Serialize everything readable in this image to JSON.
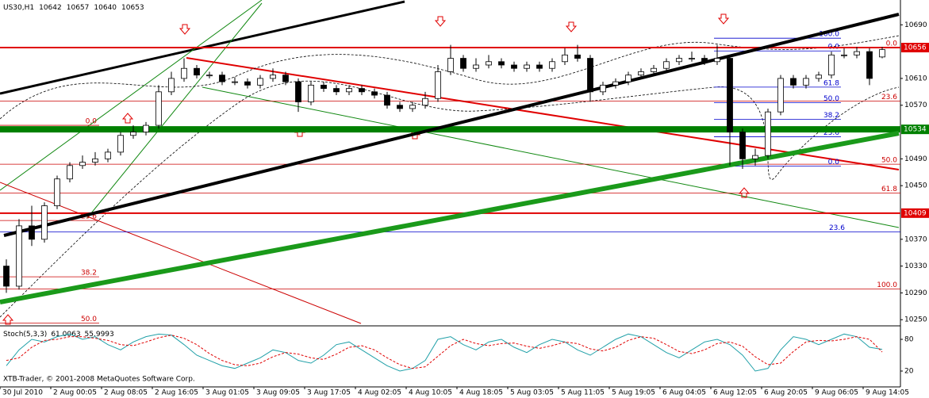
{
  "chart_data": {
    "type": "candlestick",
    "symbol": "US30,H1",
    "open": [
      10330,
      10300,
      10390,
      10370,
      10420,
      10460,
      10480,
      10485,
      10490,
      10500,
      10525,
      10530,
      10540,
      10590,
      10610,
      10625,
      10615,
      10615,
      10605,
      10605,
      10600,
      10610,
      10615,
      10605,
      10575,
      10600,
      10595,
      10590,
      10595,
      10590,
      10585,
      10570,
      10565,
      10570,
      10580,
      10620,
      10640,
      10625,
      10630,
      10635,
      10630,
      10625,
      10630,
      10625,
      10635,
      10645,
      10640,
      10590,
      10600,
      10605,
      10615,
      10620,
      10625,
      10635,
      10640,
      10640,
      10635,
      10640,
      10530,
      10490,
      10495,
      10560,
      10610,
      10600,
      10610,
      10615,
      10645,
      10645,
      10650,
      10642
    ],
    "high": [
      10340,
      10400,
      10420,
      10425,
      10465,
      10485,
      10495,
      10500,
      10505,
      10530,
      10540,
      10545,
      10600,
      10620,
      10640,
      10630,
      10620,
      10620,
      10612,
      10610,
      10615,
      10625,
      10620,
      10610,
      10605,
      10605,
      10600,
      10600,
      10600,
      10595,
      10590,
      10575,
      10575,
      10590,
      10630,
      10660,
      10645,
      10640,
      10645,
      10640,
      10635,
      10635,
      10635,
      10640,
      10655,
      10660,
      10645,
      10605,
      10610,
      10620,
      10625,
      10630,
      10640,
      10645,
      10650,
      10645,
      10660,
      10645,
      10535,
      10505,
      10565,
      10615,
      10615,
      10615,
      10620,
      10650,
      10655,
      10657,
      10655,
      10657
    ],
    "low": [
      10290,
      10295,
      10360,
      10365,
      10415,
      10455,
      10475,
      10480,
      10485,
      10495,
      10520,
      10525,
      10535,
      10585,
      10605,
      10610,
      10610,
      10600,
      10600,
      10595,
      10595,
      10605,
      10600,
      10560,
      10570,
      10590,
      10585,
      10585,
      10585,
      10580,
      10565,
      10560,
      10560,
      10565,
      10575,
      10615,
      10620,
      10620,
      10625,
      10625,
      10620,
      10620,
      10620,
      10620,
      10630,
      10635,
      10575,
      10585,
      10595,
      10600,
      10610,
      10615,
      10620,
      10630,
      10635,
      10630,
      10630,
      10480,
      10475,
      10480,
      10490,
      10555,
      10595,
      10595,
      10605,
      10610,
      10640,
      10640,
      10600,
      10640
    ],
    "close": [
      10300,
      10390,
      10370,
      10420,
      10460,
      10480,
      10485,
      10490,
      10500,
      10525,
      10530,
      10540,
      10590,
      10610,
      10625,
      10615,
      10615,
      10605,
      10605,
      10600,
      10610,
      10615,
      10605,
      10575,
      10600,
      10595,
      10590,
      10595,
      10590,
      10585,
      10570,
      10565,
      10570,
      10580,
      10620,
      10640,
      10625,
      10630,
      10635,
      10630,
      10625,
      10630,
      10625,
      10635,
      10645,
      10640,
      10590,
      10600,
      10605,
      10615,
      10620,
      10625,
      10635,
      10640,
      10640,
      10635,
      10640,
      10530,
      10490,
      10495,
      10560,
      10610,
      10600,
      10610,
      10615,
      10645,
      10645,
      10650,
      10610,
      10653
    ],
    "ylim": [
      10242,
      10727
    ],
    "yticks": [
      10690,
      10610,
      10570,
      10490,
      10450,
      10370,
      10330,
      10290,
      10250
    ],
    "levels": [
      {
        "value": 10656,
        "color": "#e00000"
      },
      {
        "value": 10534,
        "color": "#008000"
      },
      {
        "value": 10409,
        "color": "#e00000"
      }
    ],
    "fibs": [
      {
        "color": "#cc0000",
        "levels": [
          {
            "label": "0.0",
            "value": 10656
          },
          {
            "label": "23.6",
            "value": 10576
          },
          {
            "label": "50.0",
            "value": 10482
          },
          {
            "label": "61.8",
            "value": 10439
          },
          {
            "label": "100.0",
            "value": 10296
          }
        ]
      },
      {
        "color": "#0000cc",
        "levels": [
          {
            "label": "100.0",
            "value": 10670
          },
          {
            "label": "0.0",
            "value": 10651
          },
          {
            "label": "61.8",
            "value": 10597
          },
          {
            "label": "50.0",
            "value": 10574
          },
          {
            "label": "38.2",
            "value": 10549
          },
          {
            "label": "23.6",
            "value": 10523
          },
          {
            "label": "0.0",
            "value": 10479
          }
        ]
      },
      {
        "color": "#cc0000",
        "levels": [
          {
            "label": "0.0",
            "value": 10540
          },
          {
            "label": "23.6",
            "value": 10398
          },
          {
            "label": "38.2",
            "value": 10314
          },
          {
            "label": "50.0",
            "value": 10245
          }
        ]
      },
      {
        "color": "#0000cc",
        "levels": [
          {
            "label": "23.6",
            "value": 10381
          }
        ]
      }
    ],
    "x_labels": [
      "30 Jul 2010",
      "2 Aug 00:05",
      "2 Aug 08:05",
      "2 Aug 16:05",
      "3 Aug 01:05",
      "3 Aug 09:05",
      "3 Aug 17:05",
      "4 Aug 02:05",
      "4 Aug 10:05",
      "4 Aug 18:05",
      "5 Aug 03:05",
      "5 Aug 11:05",
      "5 Aug 19:05",
      "6 Aug 04:05",
      "6 Aug 12:05",
      "6 Aug 20:05",
      "9 Aug 06:05",
      "9 Aug 14:05"
    ],
    "copyright": "XTB-Trader, © 2001-2008 MetaQuotes Software Corp.",
    "indicator": {
      "type": "line",
      "name": "Stoch(5,3,3)",
      "ylim": [
        -10,
        104
      ],
      "yticks": [
        20,
        80
      ],
      "series": [
        {
          "color": "#20a0a8",
          "values": [
            30,
            60,
            80,
            75,
            85,
            90,
            80,
            85,
            70,
            60,
            75,
            85,
            90,
            88,
            70,
            50,
            40,
            30,
            25,
            35,
            45,
            60,
            55,
            40,
            35,
            50,
            70,
            75,
            60,
            45,
            30,
            20,
            25,
            40,
            80,
            85,
            70,
            60,
            75,
            80,
            65,
            55,
            70,
            80,
            75,
            60,
            50,
            65,
            80,
            90,
            85,
            70,
            55,
            45,
            60,
            75,
            80,
            70,
            50,
            20,
            25,
            60,
            85,
            80,
            70,
            80,
            90,
            85,
            65,
            61.0063
          ]
        },
        {
          "color": "#e00000",
          "values": [
            40,
            45,
            65,
            78,
            80,
            85,
            85,
            82,
            78,
            70,
            68,
            75,
            83,
            88,
            82,
            70,
            53,
            40,
            32,
            30,
            35,
            47,
            55,
            52,
            45,
            42,
            52,
            65,
            68,
            60,
            45,
            32,
            25,
            28,
            48,
            68,
            80,
            72,
            68,
            72,
            73,
            67,
            63,
            68,
            75,
            72,
            62,
            58,
            65,
            78,
            85,
            82,
            70,
            57,
            53,
            60,
            72,
            75,
            67,
            47,
            32,
            35,
            57,
            75,
            78,
            77,
            80,
            85,
            80,
            55.9993
          ]
        }
      ]
    }
  }
}
